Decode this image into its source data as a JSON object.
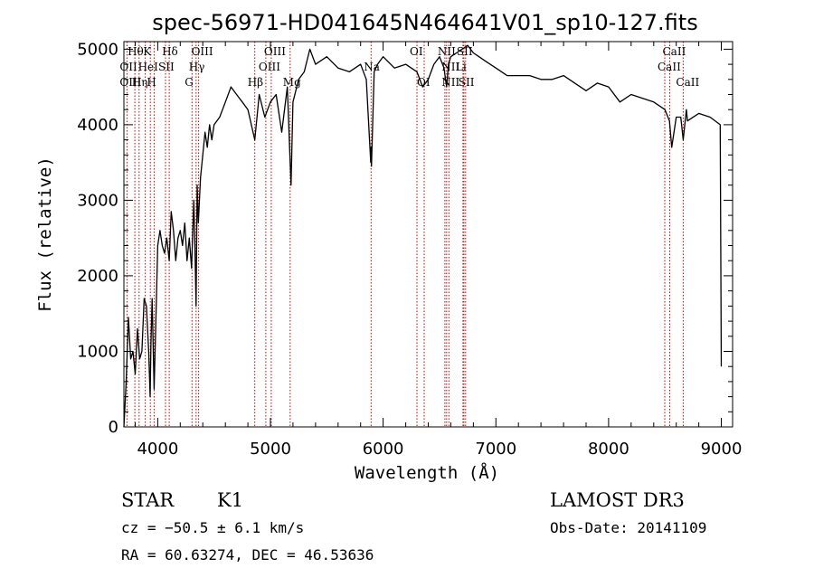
{
  "chart_data": {
    "type": "line",
    "title": "spec-56971-HD041645N464641V01_sp10-127.fits",
    "xlabel": "Wavelength (Å)",
    "ylabel": "Flux (relative)",
    "xlim": [
      3700,
      9100
    ],
    "ylim": [
      0,
      5100
    ],
    "xticks": [
      4000,
      5000,
      6000,
      7000,
      8000,
      9000
    ],
    "yticks": [
      0,
      1000,
      2000,
      3000,
      4000,
      5000
    ],
    "grid": false,
    "series": [
      {
        "x": [
          3700,
          3720,
          3740,
          3760,
          3780,
          3800,
          3820,
          3840,
          3860,
          3880,
          3900,
          3920,
          3933,
          3940,
          3950,
          3968,
          3980,
          4000,
          4020,
          4040,
          4060,
          4080,
          4102,
          4120,
          4140,
          4160,
          4180,
          4200,
          4220,
          4240,
          4260,
          4280,
          4300,
          4320,
          4330,
          4340,
          4350,
          4360,
          4380,
          4400,
          4420,
          4440,
          4460,
          4480,
          4500,
          4550,
          4600,
          4650,
          4700,
          4750,
          4800,
          4861,
          4900,
          4950,
          5000,
          5050,
          5100,
          5150,
          5172,
          5183,
          5200,
          5250,
          5300,
          5350,
          5400,
          5500,
          5600,
          5700,
          5800,
          5850,
          5890,
          5893,
          5896,
          5920,
          5950,
          6000,
          6100,
          6200,
          6300,
          6350,
          6400,
          6450,
          6500,
          6540,
          6563,
          6580,
          6600,
          6650,
          6700,
          6750,
          6800,
          6850,
          6900,
          6950,
          7000,
          7100,
          7200,
          7300,
          7400,
          7500,
          7600,
          7700,
          7800,
          7900,
          8000,
          8100,
          8200,
          8300,
          8400,
          8500,
          8540,
          8560,
          8600,
          8640,
          8662,
          8690,
          8700,
          8800,
          8900,
          8990,
          9000
        ],
        "y": [
          0,
          600,
          1450,
          900,
          1000,
          700,
          1300,
          900,
          1000,
          1700,
          1600,
          1000,
          400,
          1100,
          1700,
          500,
          1200,
          2400,
          2600,
          2400,
          2300,
          2500,
          2200,
          2850,
          2600,
          2200,
          2500,
          2600,
          2400,
          2700,
          2200,
          2500,
          2100,
          3000,
          2400,
          1600,
          3200,
          2700,
          3300,
          3600,
          3900,
          3700,
          4000,
          3800,
          4000,
          4100,
          4300,
          4500,
          4400,
          4300,
          4200,
          3800,
          4400,
          4100,
          4300,
          4400,
          3900,
          4500,
          3600,
          3200,
          4300,
          4600,
          4700,
          5000,
          4800,
          4900,
          4750,
          4700,
          4800,
          4600,
          3500,
          3700,
          3450,
          4700,
          4800,
          4900,
          4750,
          4800,
          4700,
          4500,
          4600,
          4800,
          4900,
          4750,
          4500,
          4800,
          4900,
          4950,
          5000,
          5050,
          4950,
          4900,
          4850,
          4800,
          4750,
          4650,
          4650,
          4650,
          4600,
          4600,
          4650,
          4550,
          4450,
          4550,
          4500,
          4300,
          4400,
          4350,
          4300,
          4200,
          4050,
          3700,
          4100,
          4100,
          3800,
          4200,
          4050,
          4150,
          4100,
          4000,
          800
        ]
      }
    ],
    "annotations": [
      {
        "label": "Hδ",
        "x": 4102,
        "row": 0
      },
      {
        "label": "OII",
        "x": 3727,
        "row": 1
      },
      {
        "label": "OIII",
        "x": 3727,
        "row": 2
      },
      {
        "label": "Hθ",
        "x": 3797,
        "row": 0
      },
      {
        "label": "K",
        "x": 3934,
        "row": 0
      },
      {
        "label": "HeI",
        "x": 3889,
        "row": 1
      },
      {
        "label": "Hη",
        "x": 3835,
        "row": 2
      },
      {
        "label": "H",
        "x": 3968,
        "row": 2
      },
      {
        "label": "SII",
        "x": 4069,
        "row": 1
      },
      {
        "label": "OIII",
        "x": 4363,
        "row": 0
      },
      {
        "label": "Hγ",
        "x": 4340,
        "row": 1
      },
      {
        "label": "G",
        "x": 4304,
        "row": 2
      },
      {
        "label": "OIII",
        "x": 5007,
        "row": 0
      },
      {
        "label": "OIII",
        "x": 4959,
        "row": 1
      },
      {
        "label": "Hβ",
        "x": 4861,
        "row": 2
      },
      {
        "label": "Mg",
        "x": 5175,
        "row": 2
      },
      {
        "label": "Na",
        "x": 5893,
        "row": 1
      },
      {
        "label": "OI",
        "x": 6300,
        "row": 0
      },
      {
        "label": "OI",
        "x": 6364,
        "row": 2
      },
      {
        "label": "NII",
        "x": 6548,
        "row": 0
      },
      {
        "label": "NII",
        "x": 6583,
        "row": 1
      },
      {
        "label": "NII",
        "x": 6583,
        "row": 2
      },
      {
        "label": "SII",
        "x": 6716,
        "row": 0
      },
      {
        "label": "Li",
        "x": 6708,
        "row": 1
      },
      {
        "label": "SII",
        "x": 6731,
        "row": 2
      },
      {
        "label": "CaII",
        "x": 8542,
        "row": 0
      },
      {
        "label": "CaII",
        "x": 8498,
        "row": 1
      },
      {
        "label": "CaII",
        "x": 8662,
        "row": 2
      }
    ],
    "line_markers": [
      3727,
      3797,
      3835,
      3889,
      3934,
      3968,
      4069,
      4102,
      4304,
      4340,
      4363,
      4861,
      4959,
      5007,
      5175,
      5893,
      6300,
      6364,
      6548,
      6563,
      6583,
      6708,
      6716,
      6731,
      8498,
      8542,
      8662
    ],
    "colors": {
      "line": "#000000",
      "markers": "#cc0000",
      "axes": "#000000",
      "background": "#ffffff"
    }
  },
  "info": {
    "object_class": "STAR",
    "subclass": "K1",
    "survey": "LAMOST DR3",
    "cz": "cz = −50.5 ± 6.1 km/s",
    "obs_date": "Obs-Date: 20141109",
    "coords": "RA =  60.63274, DEC =  46.53636"
  }
}
